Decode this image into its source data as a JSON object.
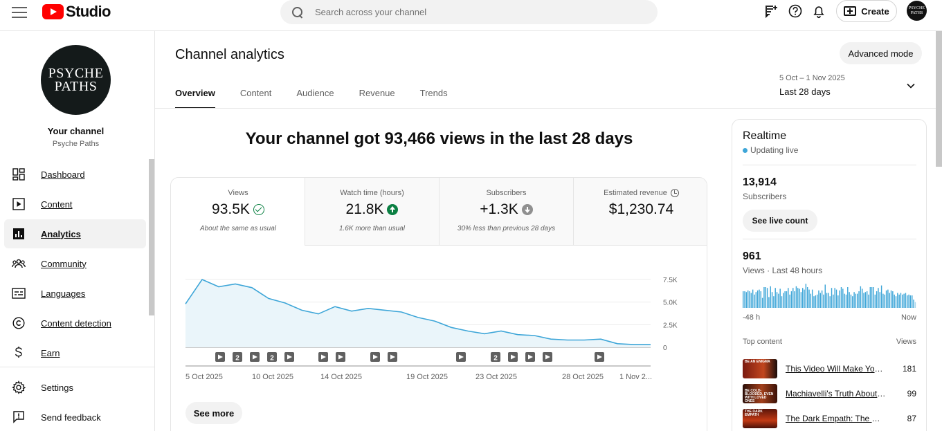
{
  "app": {
    "logo_text": "Studio",
    "search_placeholder": "Search across your channel",
    "create_label": "Create",
    "avatar_text": "PSYCHE PATHS"
  },
  "sidebar": {
    "avatar_text_line1": "PSYCHE",
    "avatar_text_line2": "PATHS",
    "your_channel": "Your channel",
    "channel_name": "Psyche Paths",
    "items": [
      {
        "label": "Dashboard",
        "icon": "dashboard-icon"
      },
      {
        "label": "Content",
        "icon": "content-icon"
      },
      {
        "label": "Analytics",
        "icon": "analytics-icon"
      },
      {
        "label": "Community",
        "icon": "community-icon"
      },
      {
        "label": "Languages",
        "icon": "languages-icon"
      },
      {
        "label": "Content detection",
        "icon": "copyright-icon"
      },
      {
        "label": "Earn",
        "icon": "dollar-icon"
      }
    ],
    "bottom_items": [
      {
        "label": "Settings",
        "icon": "gear-icon"
      },
      {
        "label": "Send feedback",
        "icon": "feedback-icon"
      }
    ]
  },
  "header": {
    "title": "Channel analytics",
    "advanced_mode": "Advanced mode",
    "tabs": [
      "Overview",
      "Content",
      "Audience",
      "Revenue",
      "Trends"
    ],
    "active_tab": "Overview",
    "date_range": "5 Oct – 1 Nov 2025",
    "date_label": "Last 28 days"
  },
  "overview": {
    "headline": "Your channel got 93,466 views in the last 28 days",
    "metrics": [
      {
        "label": "Views",
        "value": "93.5K",
        "sub": "About the same as usual",
        "status": "check"
      },
      {
        "label": "Watch time (hours)",
        "value": "21.8K",
        "sub": "1.6K more than usual",
        "status": "up"
      },
      {
        "label": "Subscribers",
        "value": "+1.3K",
        "sub": "30% less than previous 28 days",
        "status": "down"
      },
      {
        "label": "Estimated revenue",
        "value": "$1,230.74",
        "sub": "",
        "status": "clock"
      }
    ],
    "see_more": "See more"
  },
  "chart_data": {
    "type": "area",
    "x": [
      "4 Oct",
      "5 Oct",
      "6 Oct",
      "7 Oct",
      "8 Oct",
      "9 Oct",
      "10 Oct",
      "11 Oct",
      "12 Oct",
      "13 Oct",
      "14 Oct",
      "15 Oct",
      "16 Oct",
      "17 Oct",
      "18 Oct",
      "19 Oct",
      "20 Oct",
      "21 Oct",
      "22 Oct",
      "23 Oct",
      "24 Oct",
      "25 Oct",
      "26 Oct",
      "27 Oct",
      "28 Oct",
      "29 Oct",
      "30 Oct",
      "31 Oct",
      "1 Nov"
    ],
    "values": [
      4800,
      7500,
      6700,
      7000,
      6600,
      5400,
      4900,
      4100,
      3700,
      4500,
      4000,
      4300,
      4100,
      3900,
      3300,
      2900,
      2200,
      1800,
      1500,
      1800,
      1400,
      1300,
      900,
      800,
      800,
      900,
      400,
      300,
      300
    ],
    "y_ticks": [
      "7.5K",
      "5.0K",
      "2.5K",
      "0"
    ],
    "ylim": [
      0,
      7500
    ],
    "x_tick_labels": [
      "5 Oct 2025",
      "10 Oct 2025",
      "14 Oct 2025",
      "19 Oct 2025",
      "23 Oct 2025",
      "28 Oct 2025",
      "1 Nov 2..."
    ],
    "upload_markers": [
      "play",
      "2",
      "play",
      "2",
      "play",
      "play",
      "play",
      "play",
      "play",
      "play",
      "2",
      "play",
      "play",
      "play",
      "play"
    ],
    "color": "#3ea6d8",
    "grid": true
  },
  "realtime": {
    "title": "Realtime",
    "live": "Updating live",
    "subscribers_count": "13,914",
    "subscribers_label": "Subscribers",
    "see_live_count": "See live count",
    "views_count": "961",
    "views_label": "Views · Last 48 hours",
    "bar_values": [
      20,
      20,
      19,
      21,
      20,
      18,
      22,
      16,
      19,
      21,
      22,
      20,
      12,
      25,
      25,
      24,
      13,
      26,
      19,
      14,
      24,
      19,
      17,
      23,
      14,
      18,
      20,
      20,
      24,
      16,
      20,
      24,
      20,
      26,
      24,
      23,
      19,
      24,
      22,
      29,
      25,
      22,
      17,
      22,
      14,
      15,
      16,
      21,
      18,
      21,
      16,
      28,
      18,
      18,
      14,
      24,
      16,
      24,
      22,
      15,
      21,
      25,
      23,
      17,
      16,
      25,
      19,
      16,
      14,
      19,
      17,
      17,
      20,
      26,
      23,
      18,
      19,
      20,
      16,
      25,
      25,
      25,
      16,
      20,
      24,
      19,
      27,
      17,
      16,
      21,
      22,
      18,
      21,
      20,
      16,
      14,
      18,
      16,
      18,
      16,
      17,
      18,
      15,
      16,
      15,
      15,
      10,
      7
    ],
    "axis_left": "-48 h",
    "axis_right": "Now",
    "top_content_label": "Top content",
    "views_col_label": "Views",
    "top_content": [
      {
        "title": "This Video Will Make You ...",
        "views": "181",
        "thumb_text": "BE AN ENIGMA",
        "thumb_color": "#7a1a10"
      },
      {
        "title": "Machiavelli's Truth About Po...",
        "views": "99",
        "thumb_text": "BE COLD-BLOODED, EVEN WITH LOVED ONES",
        "thumb_color": "#5a1c12"
      },
      {
        "title": "The Dark Empath: The Most ...",
        "views": "87",
        "thumb_text": "THE DARK EMPATH",
        "thumb_color": "#8a2010"
      }
    ]
  }
}
